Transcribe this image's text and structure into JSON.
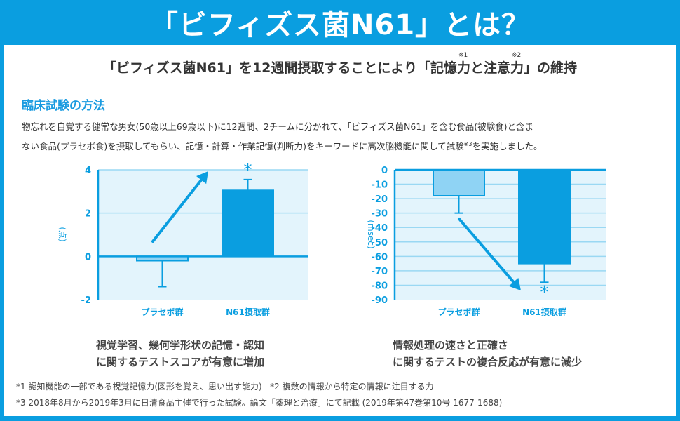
{
  "header": {
    "title": "「ビフィズス菌N61」とは？"
  },
  "lead": {
    "part1": "「ビフィズス菌N61」を12週間摂取することにより「記憶",
    "part2": "力",
    "part3": "と注意",
    "part4": "力",
    "part5": "」の維持",
    "note1": "※1",
    "note2": "※2"
  },
  "method": {
    "title": "臨床試験の方法",
    "line1": "物忘れを自覚する健常な男女(50歳以上69歳以下)に12週間、2チームに分かれて、「ビフィズス菌N61」を含む食品(被験食)と含ま",
    "line2a": "ない食品(プラセボ食)を摂取してもらい、記憶・計算・作業記憶(判断力)をキーワードに高次脳機能に関して試験",
    "line2note": "※3",
    "line2b": "を実施しました。"
  },
  "colors": {
    "brand": "#0a9ee0",
    "plot_bg": "#e3f4fc",
    "placebo_fill": "#8fd3f4",
    "n61_fill": "#0a9ee0",
    "text": "#333333"
  },
  "chart_data": [
    {
      "type": "bar",
      "title": "",
      "ylabel": "(点)",
      "xlabel": "",
      "categories": [
        "プラセボ群",
        "N61摂取群"
      ],
      "values": [
        -0.2,
        3.05
      ],
      "error_bars": [
        -1.4,
        3.55
      ],
      "significance": [
        "",
        "*"
      ],
      "ylim": [
        -2,
        4
      ],
      "yticks": [
        "4",
        "2",
        "0",
        "-2"
      ],
      "ytick_values": [
        4,
        2,
        0,
        -2
      ],
      "grid": true,
      "annotation": "up-arrow",
      "caption_line1": "視覚学習、幾何学形状の記憶・認知",
      "caption_line2": "に関するテストスコアが有意に増加"
    },
    {
      "type": "bar",
      "title": "",
      "ylabel": "(msec)",
      "xlabel": "",
      "categories": [
        "プラセボ群",
        "N61摂取群"
      ],
      "values": [
        -18,
        -65
      ],
      "error_bars": [
        -30,
        -78
      ],
      "significance": [
        "",
        "*"
      ],
      "ylim": [
        -90,
        0
      ],
      "yticks": [
        "0",
        "-10",
        "-20",
        "-30",
        "-40",
        "-50",
        "-60",
        "-70",
        "-80",
        "-90"
      ],
      "ytick_values": [
        0,
        -10,
        -20,
        -30,
        -40,
        -50,
        -60,
        -70,
        -80,
        -90
      ],
      "grid": true,
      "annotation": "down-arrow",
      "caption_line1": "情報処理の速さと正確さ",
      "caption_line2": "に関するテストの複合反応が有意に減少"
    }
  ],
  "footnotes": {
    "n1": "*1 認知機能の一部である視覚記憶力(図形を覚え、思い出す能力)",
    "n2": "*2 複数の情報から特定の情報に注目する力",
    "n3": "*3 2018年8月から2019年3月に日清食品主催で行った試験。論文「薬理と治療」にて記載 (2019年第47巻第10号 1677-1688)"
  }
}
